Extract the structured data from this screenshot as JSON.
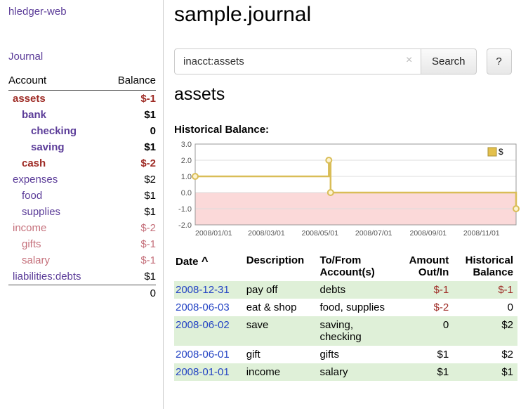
{
  "palette": {
    "link_purple": "#5c3d99",
    "link_blue": "#2444c4",
    "negative_red": "#9e2b25",
    "muted_rose": "#c5707b",
    "row_green": "#dff0d8",
    "text_black": "#000000"
  },
  "sidebar": {
    "brand": "hledger-web",
    "journal_link": "Journal",
    "accounts": {
      "header_account": "Account",
      "header_balance": "Balance",
      "rows": [
        {
          "name": "assets",
          "balance": "$-1",
          "indent": 0,
          "bold": true,
          "name_color": "#9e2b25",
          "balance_color": "#9e2b25"
        },
        {
          "name": "bank",
          "balance": "$1",
          "indent": 1,
          "bold": true,
          "name_color": "#5c3d99",
          "balance_color": "#000000"
        },
        {
          "name": "checking",
          "balance": "0",
          "indent": 2,
          "bold": true,
          "name_color": "#5c3d99",
          "balance_color": "#000000"
        },
        {
          "name": "saving",
          "balance": "$1",
          "indent": 2,
          "bold": true,
          "name_color": "#5c3d99",
          "balance_color": "#000000"
        },
        {
          "name": "cash",
          "balance": "$-2",
          "indent": 1,
          "bold": true,
          "name_color": "#9e2b25",
          "balance_color": "#9e2b25"
        },
        {
          "name": "expenses",
          "balance": "$2",
          "indent": 0,
          "bold": false,
          "name_color": "#5c3d99",
          "balance_color": "#000000"
        },
        {
          "name": "food",
          "balance": "$1",
          "indent": 1,
          "bold": false,
          "name_color": "#5c3d99",
          "balance_color": "#000000"
        },
        {
          "name": "supplies",
          "balance": "$1",
          "indent": 1,
          "bold": false,
          "name_color": "#5c3d99",
          "balance_color": "#000000"
        },
        {
          "name": "income",
          "balance": "$-2",
          "indent": 0,
          "bold": false,
          "name_color": "#c5707b",
          "balance_color": "#c5707b"
        },
        {
          "name": "gifts",
          "balance": "$-1",
          "indent": 1,
          "bold": false,
          "name_color": "#c5707b",
          "balance_color": "#c5707b"
        },
        {
          "name": "salary",
          "balance": "$-1",
          "indent": 1,
          "bold": false,
          "name_color": "#c5707b",
          "balance_color": "#c5707b"
        },
        {
          "name": "liabilities:debts",
          "balance": "$1",
          "indent": 0,
          "bold": false,
          "name_color": "#5c3d99",
          "balance_color": "#000000"
        }
      ],
      "total": "0"
    }
  },
  "main": {
    "title": "sample.journal",
    "search": {
      "value": "inacct:assets",
      "clear_icon": "×",
      "button_label": "Search",
      "help_label": "?"
    },
    "section_title": "assets",
    "chart_label": "Historical Balance:",
    "table": {
      "header_date": "Date",
      "sort_icon": "^",
      "header_description": "Description",
      "header_accounts": "To/From\nAccount(s)",
      "header_amount": "Amount\nOut/In",
      "header_balance": "Historical\nBalance",
      "rows": [
        {
          "date": "2008-12-31",
          "description": "pay off",
          "accounts": "debts",
          "amount": "$-1",
          "amount_negative": true,
          "balance": "$-1",
          "balance_negative": true
        },
        {
          "date": "2008-06-03",
          "description": "eat & shop",
          "accounts": "food, supplies",
          "amount": "$-2",
          "amount_negative": true,
          "balance": "0",
          "balance_negative": false
        },
        {
          "date": "2008-06-02",
          "description": "save",
          "accounts": "saving,\nchecking",
          "amount": "0",
          "amount_negative": false,
          "balance": "$2",
          "balance_negative": false
        },
        {
          "date": "2008-06-01",
          "description": "gift",
          "accounts": "gifts",
          "amount": "$1",
          "amount_negative": false,
          "balance": "$2",
          "balance_negative": false
        },
        {
          "date": "2008-01-01",
          "description": "income",
          "accounts": "salary",
          "amount": "$1",
          "amount_negative": false,
          "balance": "$1",
          "balance_negative": false
        }
      ]
    }
  },
  "chart_data": {
    "type": "line",
    "step": true,
    "title": "Historical Balance",
    "legend": {
      "label": "$",
      "position": "top-right",
      "swatch_color": "#e3c04c"
    },
    "x_range": [
      "2008-01-01",
      "2008-12-31"
    ],
    "x_ticks": [
      "2008/01/01",
      "2008/03/01",
      "2008/05/01",
      "2008/07/01",
      "2008/09/01",
      "2008/11/01"
    ],
    "y_ticks": [
      3.0,
      2.0,
      1.0,
      0.0,
      -1.0,
      -2.0
    ],
    "ylim": [
      -2.0,
      3.0
    ],
    "grid": true,
    "points": [
      {
        "date": "2008-01-01",
        "value": 1
      },
      {
        "date": "2008-06-01",
        "value": 2
      },
      {
        "date": "2008-06-03",
        "value": 0
      },
      {
        "date": "2008-12-31",
        "value": -1
      }
    ],
    "line_color": "#d9bd57",
    "marker_fill": "#fdf3d0",
    "negative_region_fill": "#fbd9d9",
    "plot_border_color": "#999999",
    "grid_color": "#dddddd",
    "tick_text_color": "#555555"
  }
}
